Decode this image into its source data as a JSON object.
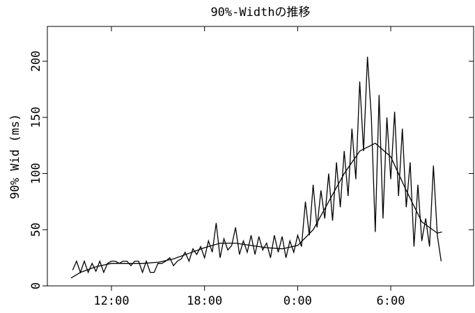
{
  "chart_data": {
    "type": "line",
    "title": "90%-Widthの推移",
    "y_label": "90% Wid (ms)",
    "xlim": [
      7.87,
      35.34
    ],
    "ylim": [
      0,
      231
    ],
    "xticks": [
      {
        "value": 12,
        "label": "12:00"
      },
      {
        "value": 18,
        "label": "18:00"
      },
      {
        "value": 24,
        "label": "0:00"
      },
      {
        "value": 30,
        "label": "6:00"
      }
    ],
    "yticks": [
      0,
      50,
      100,
      150,
      200
    ],
    "series": [
      {
        "color": "#000000",
        "x": [
          9.5,
          9.75,
          10,
          10.25,
          10.5,
          10.75,
          11,
          11.25,
          11.5,
          11.75,
          12,
          12.25,
          12.5,
          12.75,
          13,
          13.25,
          13.5,
          13.75,
          14,
          14.25,
          14.5,
          14.75,
          15,
          15.25,
          15.5,
          15.75,
          16,
          16.25,
          16.5,
          16.75,
          17,
          17.25,
          17.5,
          17.75,
          18,
          18.25,
          18.5,
          18.75,
          19,
          19.25,
          19.5,
          19.75,
          20,
          20.25,
          20.5,
          20.75,
          21,
          21.25,
          21.5,
          21.75,
          22,
          22.25,
          22.5,
          22.75,
          23,
          23.25,
          23.5,
          23.75,
          24,
          24.25,
          24.5,
          24.75,
          25,
          25.25,
          25.5,
          25.75,
          26,
          26.25,
          26.5,
          26.75,
          27,
          27.25,
          27.5,
          27.75,
          28,
          28.25,
          28.5,
          28.75,
          29,
          29.25,
          29.5,
          29.75,
          30,
          30.25,
          30.5,
          30.75,
          31,
          31.25,
          31.5,
          31.75,
          32,
          32.25,
          32.5,
          32.75,
          33,
          33.25
        ],
        "values": [
          14,
          22,
          12,
          22,
          12,
          20,
          13,
          22,
          12,
          20,
          22,
          22,
          20,
          22,
          22,
          18,
          22,
          22,
          12,
          22,
          12,
          12,
          20,
          20,
          22,
          25,
          18,
          22,
          24,
          30,
          22,
          33,
          28,
          35,
          25,
          40,
          30,
          56,
          25,
          42,
          32,
          36,
          52,
          28,
          40,
          30,
          45,
          28,
          44,
          32,
          38,
          25,
          45,
          30,
          44,
          25,
          40,
          30,
          45,
          35,
          75,
          45,
          90,
          52,
          85,
          60,
          100,
          58,
          110,
          70,
          120,
          80,
          140,
          95,
          182,
          120,
          204,
          150,
          48,
          170,
          60,
          150,
          95,
          155,
          80,
          140,
          70,
          110,
          35,
          90,
          40,
          60,
          35,
          107,
          45,
          22
        ]
      },
      {
        "color": "#000000",
        "x": [
          9.4,
          10,
          11,
          12,
          13,
          14,
          15,
          16,
          17,
          18,
          19,
          20,
          21,
          22,
          23,
          24,
          25,
          26,
          27,
          28,
          29,
          30,
          31,
          32,
          33,
          33.3
        ],
        "values": [
          7,
          12,
          17,
          20,
          20,
          20,
          21,
          24,
          29,
          34,
          38,
          38,
          36,
          34,
          33,
          36,
          50,
          75,
          100,
          120,
          127,
          115,
          85,
          57,
          47,
          48
        ]
      }
    ]
  }
}
